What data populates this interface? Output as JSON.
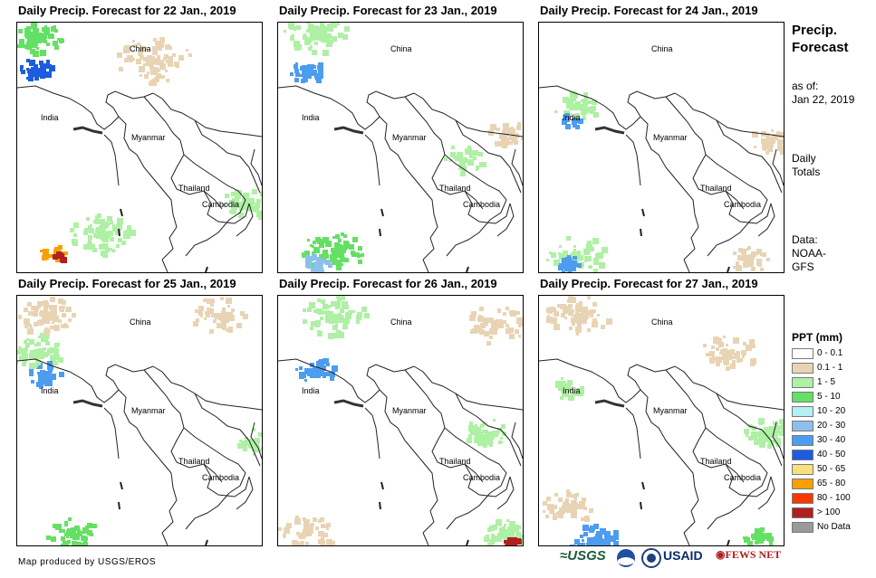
{
  "panels": [
    {
      "title": "Daily Precip. Forecast for 22 Jan., 2019"
    },
    {
      "title": "Daily Precip. Forecast for 23 Jan., 2019"
    },
    {
      "title": "Daily Precip. Forecast for 24 Jan., 2019"
    },
    {
      "title": "Daily Precip. Forecast for 25 Jan., 2019"
    },
    {
      "title": "Daily Precip. Forecast for 26 Jan., 2019"
    },
    {
      "title": "Daily Precip. Forecast for 27 Jan., 2019"
    }
  ],
  "labels": {
    "china": "China",
    "india": "India",
    "myanmar": "Myanmar",
    "thailand": "Thailand",
    "cambodia": "Cambodia"
  },
  "sidebar": {
    "title_line1": "Precip.",
    "title_line2": "Forecast",
    "asof_line1": "as of:",
    "asof_line2": "Jan 22, 2019",
    "totals_line1": "Daily",
    "totals_line2": "Totals",
    "data_line1": "Data:",
    "data_line2": "NOAA-",
    "data_line3": "GFS"
  },
  "legend": {
    "title": "PPT (mm)",
    "items": [
      {
        "label": "0 - 0.1",
        "color": "#ffffff"
      },
      {
        "label": "0.1 - 1",
        "color": "#e8d4b4"
      },
      {
        "label": "1 - 5",
        "color": "#aef0a4"
      },
      {
        "label": "5 - 10",
        "color": "#64e064"
      },
      {
        "label": "10 - 20",
        "color": "#b4f0f4"
      },
      {
        "label": "20 - 30",
        "color": "#8cc0ec"
      },
      {
        "label": "30 - 40",
        "color": "#4c9cf0"
      },
      {
        "label": "40 - 50",
        "color": "#1c5ce0"
      },
      {
        "label": "50 - 65",
        "color": "#f8e080"
      },
      {
        "label": "65 - 80",
        "color": "#f8a000"
      },
      {
        "label": "80 - 100",
        "color": "#f83800"
      },
      {
        "label": "> 100",
        "color": "#b02020"
      },
      {
        "label": "No Data",
        "color": "#9a9a9a"
      }
    ]
  },
  "credit": "Map produced by USGS/EROS",
  "logos": {
    "usgs": "USGS",
    "usaid": "USAID",
    "fewsnet": "FEWS NET"
  }
}
